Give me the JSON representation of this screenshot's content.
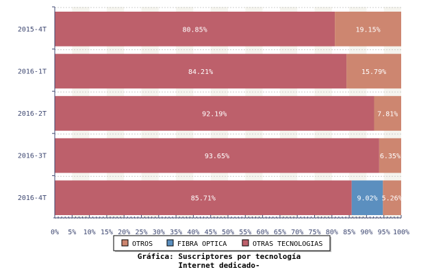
{
  "chart_data": {
    "type": "bar",
    "orientation": "horizontal",
    "stacked": true,
    "title": "Gráfica: Suscriptores por tecnología",
    "subtitle": "Internet dedicado-",
    "categories": [
      "2015-4T",
      "2016-1T",
      "2016-2T",
      "2016-3T",
      "2016-4T"
    ],
    "series": [
      {
        "name": "OTRAS TECNOLOGIAS",
        "color": "#bd606b",
        "values": [
          80.85,
          84.21,
          92.19,
          93.65,
          85.71
        ],
        "labels": [
          "80.85%",
          "84.21%",
          "92.19%",
          "93.65%",
          "85.71%"
        ]
      },
      {
        "name": "FIBRA OPTICA",
        "color": "#5b8fbf",
        "values": [
          0,
          0,
          0,
          0,
          9.02
        ],
        "labels": [
          "",
          "",
          "",
          "",
          "9.02%"
        ]
      },
      {
        "name": "OTROS",
        "color": "#cd8670",
        "values": [
          19.15,
          15.79,
          7.81,
          6.35,
          5.26
        ],
        "labels": [
          "19.15%",
          "15.79%",
          "7.81%",
          "6.35%",
          "5.26%"
        ]
      }
    ],
    "legend_order": [
      "OTROS",
      "FIBRA OPTICA",
      "OTRAS TECNOLOGIAS"
    ],
    "xlim": [
      0,
      100
    ],
    "xticks": [
      "0%",
      "5%",
      "10%",
      "15%",
      "20%",
      "25%",
      "30%",
      "35%",
      "40%",
      "45%",
      "50%",
      "55%",
      "60%",
      "65%",
      "70%",
      "75%",
      "80%",
      "85%",
      "90%",
      "95%",
      "100%"
    ],
    "grid": true,
    "legend_position": "bottom"
  }
}
